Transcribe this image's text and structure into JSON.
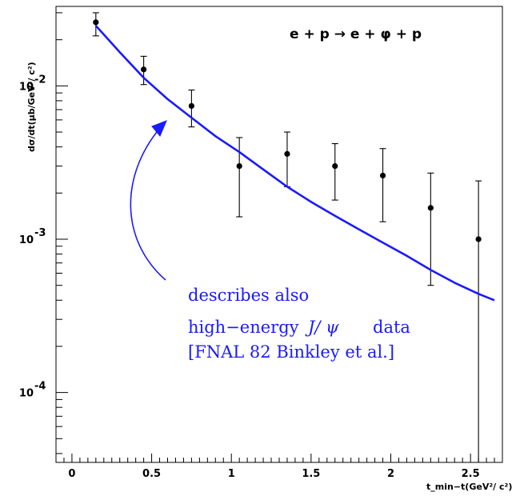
{
  "chart_data": {
    "type": "scatter",
    "title": "",
    "reaction_label": "e + p → e + φ + p",
    "xlabel": "t_min−t(GeV²/ c²)",
    "ylabel": "dσ/dt(μb/GeV²/ c²)",
    "xlim": [
      -0.1,
      2.7
    ],
    "ylim": [
      3.5e-05,
      0.033
    ],
    "yscale": "log",
    "grid": false,
    "x_ticks": [
      0,
      0.5,
      1,
      1.5,
      2,
      2.5
    ],
    "x_tick_labels": [
      "0",
      "0.5",
      "1",
      "1.5",
      "2",
      "2.5"
    ],
    "y_ticks": [
      0.0001,
      0.001,
      0.01
    ],
    "y_tick_labels": [
      {
        "base": "10",
        "exp": "-4"
      },
      {
        "base": "10",
        "exp": "-3"
      },
      {
        "base": "10",
        "exp": "-2"
      }
    ],
    "series": [
      {
        "kind": "points-with-errors",
        "color": "#000000",
        "x": [
          0.15,
          0.45,
          0.75,
          1.05,
          1.35,
          1.65,
          1.95,
          2.25,
          2.55
        ],
        "y": [
          0.026,
          0.0128,
          0.0074,
          0.003,
          0.0036,
          0.003,
          0.0026,
          0.0016,
          0.001
        ],
        "err_low": [
          0.0048,
          0.0026,
          0.002,
          0.0016,
          0.0014,
          0.0012,
          0.0013,
          0.0011,
          0.00099
        ],
        "err_high": [
          0.004,
          0.0028,
          0.002,
          0.0016,
          0.0014,
          0.0012,
          0.0013,
          0.0011,
          0.0014
        ]
      },
      {
        "kind": "curve",
        "color": "#1a1aff",
        "x": [
          0.15,
          0.3,
          0.45,
          0.6,
          0.75,
          0.9,
          1.05,
          1.2,
          1.35,
          1.5,
          1.65,
          1.8,
          1.95,
          2.1,
          2.25,
          2.4,
          2.55,
          2.65
        ],
        "y": [
          0.0247,
          0.0166,
          0.0113,
          0.0082,
          0.0062,
          0.0047,
          0.0037,
          0.00285,
          0.0022,
          0.00175,
          0.00142,
          0.00116,
          0.00095,
          0.00078,
          0.00063,
          0.00052,
          0.00044,
          0.0004
        ]
      }
    ],
    "annotation": {
      "lines": [
        "describes also",
        "high−energy",
        "data",
        "[FNAL 82 Binkley et al.]"
      ],
      "symbol": "J/ ψ",
      "color": "#1a1aff"
    }
  }
}
